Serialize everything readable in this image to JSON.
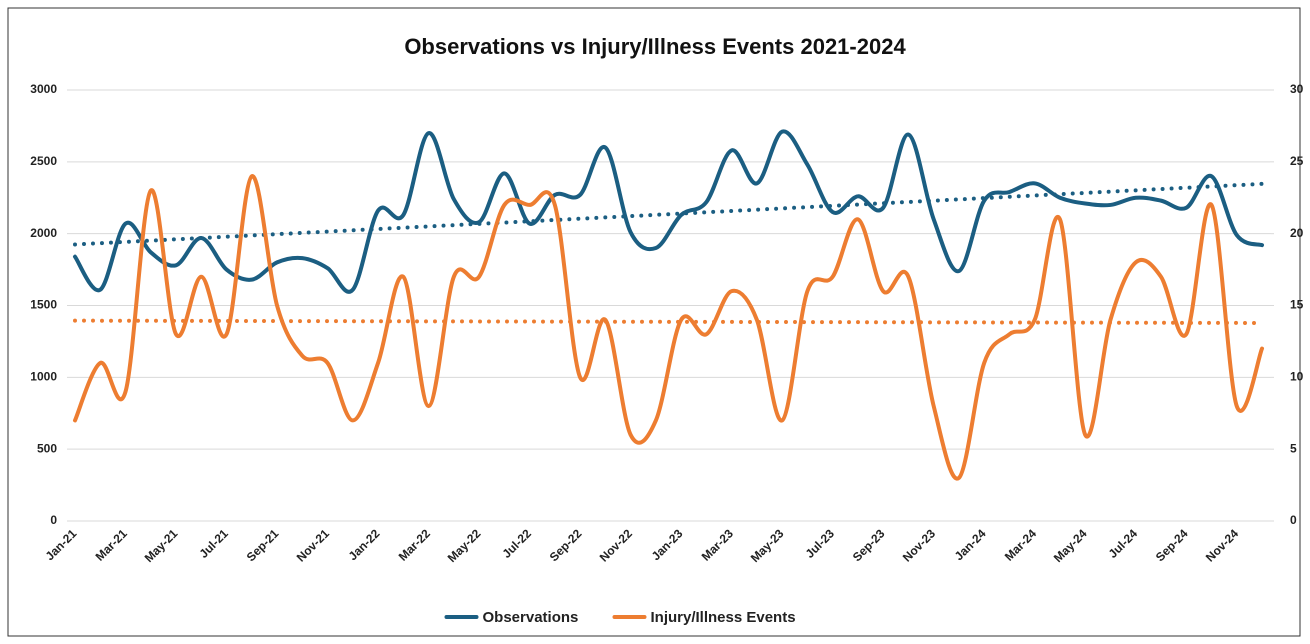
{
  "chart_data": {
    "type": "line",
    "title": "Observations vs Injury/Illness Events 2021-2024",
    "categories": [
      "Jan-21",
      null,
      "Mar-21",
      null,
      "May-21",
      null,
      "Jul-21",
      null,
      "Sep-21",
      null,
      "Nov-21",
      null,
      "Jan-22",
      null,
      "Mar-22",
      null,
      "May-22",
      null,
      "Jul-22",
      null,
      "Sep-22",
      null,
      "Nov-22",
      null,
      "Jan-23",
      null,
      "Mar-23",
      null,
      "May-23",
      null,
      "Jul-23",
      null,
      "Sep-23",
      null,
      "Nov-23",
      null,
      "Jan-24",
      null,
      "Mar-24",
      null,
      "May-24",
      null,
      "Jul-24",
      null,
      "Sep-24",
      null,
      "Nov-24",
      null
    ],
    "series": [
      {
        "name": "Observations",
        "color": "#1b5e82",
        "axis": "y",
        "trendline": true,
        "values": [
          1840,
          1610,
          2070,
          1870,
          1780,
          1970,
          1750,
          1680,
          1800,
          1830,
          1760,
          1610,
          2160,
          2130,
          2700,
          2240,
          2080,
          2420,
          2070,
          2270,
          2270,
          2600,
          2010,
          1900,
          2130,
          2220,
          2580,
          2350,
          2710,
          2480,
          2150,
          2260,
          2180,
          2690,
          2100,
          1740,
          2230,
          2290,
          2350,
          2250,
          2210,
          2200,
          2250,
          2230,
          2180,
          2400,
          1990,
          1920
        ]
      },
      {
        "name": "Injury/Illness Events",
        "color": "#ed7d31",
        "axis": "y2",
        "trendline": true,
        "values": [
          7,
          11,
          9,
          23,
          13,
          17,
          13,
          24,
          15,
          11.5,
          11,
          7,
          11,
          17,
          8,
          17,
          17,
          22,
          22,
          22,
          10,
          14,
          6,
          7,
          14,
          13,
          16,
          14,
          7,
          16,
          17,
          21,
          16,
          17,
          8,
          3,
          11,
          13,
          14,
          21,
          6,
          14,
          18,
          17,
          13,
          22,
          8,
          12
        ]
      }
    ],
    "ylim": [
      0,
      3000
    ],
    "yticks": [
      0,
      500,
      1000,
      1500,
      2000,
      2500,
      3000
    ],
    "y2lim": [
      0,
      30
    ],
    "y2ticks": [
      0,
      5,
      10,
      15,
      20,
      25,
      30
    ],
    "grid": true,
    "legend": "bottom"
  }
}
